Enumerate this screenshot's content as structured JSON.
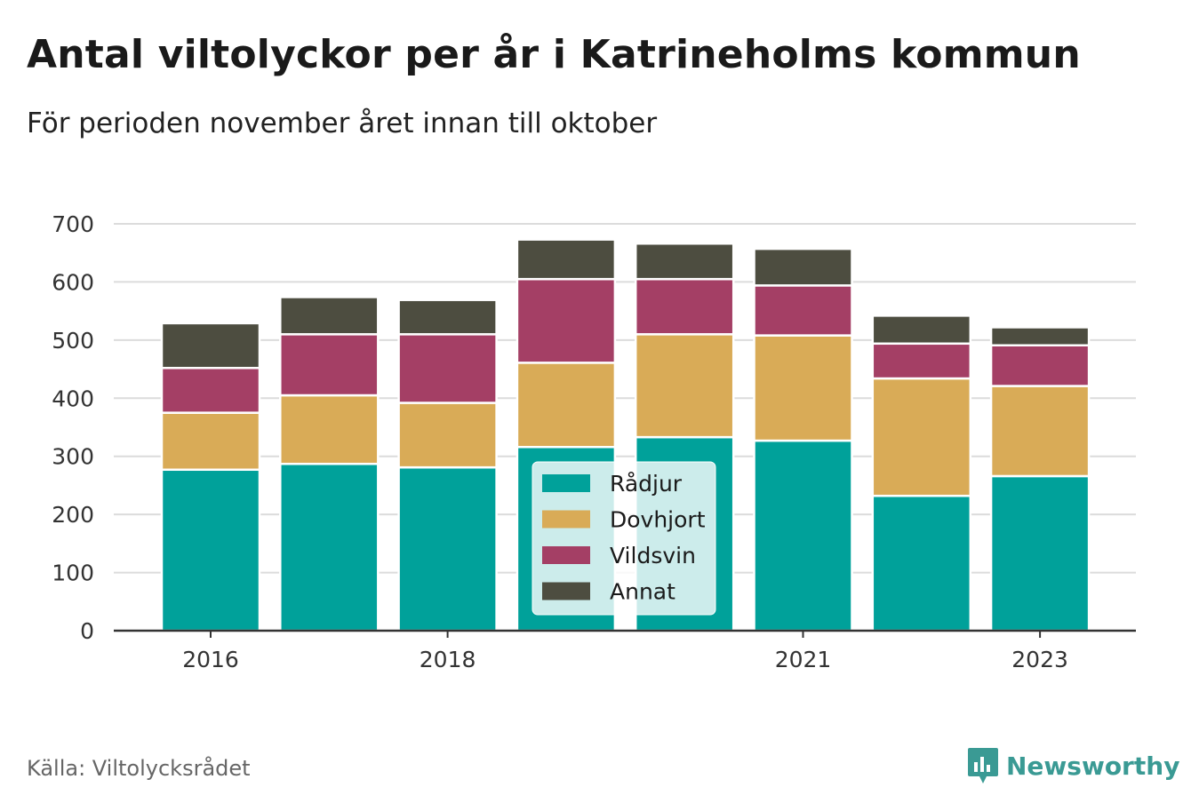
{
  "title": "Antal viltolyckor per år i Katrineholms kommun",
  "subtitle": "För perioden november året innan till oktober",
  "source": "Källa: Viltolycksrådet",
  "brand": {
    "name": "Newsworthy",
    "icon": "newsworthy-logo-icon",
    "color": "#3a9a94"
  },
  "chart_data": {
    "type": "bar",
    "stacked": true,
    "categories": [
      "2016",
      "2017",
      "2018",
      "2019",
      "2020",
      "2021",
      "2022",
      "2023"
    ],
    "x_tick_labels": [
      "2016",
      "",
      "2018",
      "",
      "",
      "2021",
      "",
      "2023"
    ],
    "series": [
      {
        "name": "Rådjur",
        "color": "#00a19a",
        "values": [
          277,
          287,
          281,
          316,
          333,
          327,
          232,
          266
        ]
      },
      {
        "name": "Dovhjort",
        "color": "#d9ab57",
        "values": [
          98,
          118,
          111,
          145,
          177,
          181,
          202,
          155
        ]
      },
      {
        "name": "Vildsvin",
        "color": "#a43f65",
        "values": [
          77,
          105,
          118,
          144,
          95,
          86,
          60,
          70
        ]
      },
      {
        "name": "Annat",
        "color": "#4d4d40",
        "values": [
          77,
          64,
          59,
          68,
          61,
          63,
          48,
          31
        ]
      }
    ],
    "ylim": [
      0,
      700
    ],
    "yticks": [
      0,
      100,
      200,
      300,
      400,
      500,
      600,
      700
    ],
    "grid": true,
    "legend_position": "center"
  }
}
